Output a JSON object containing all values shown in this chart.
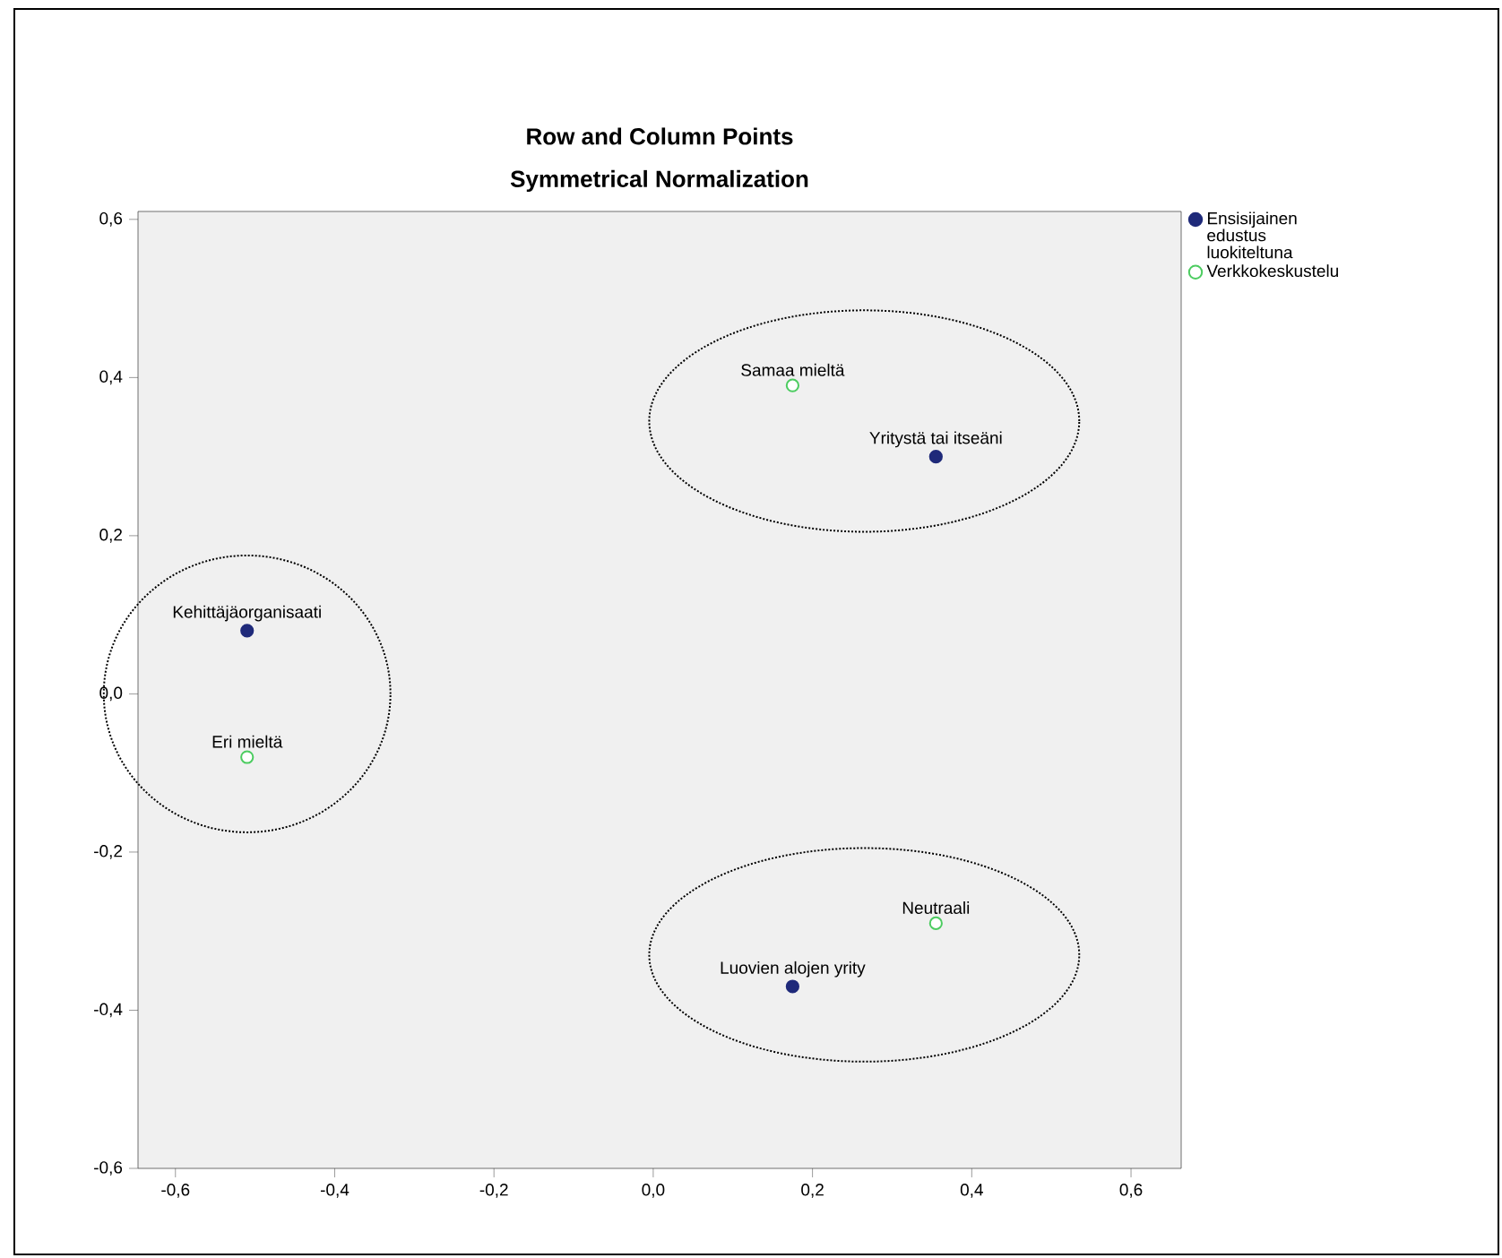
{
  "chart_data": {
    "type": "scatter",
    "title": "Row and Column Points",
    "subtitle": "Symmetrical Normalization",
    "series": [
      {
        "name": "Ensisijainen edustus luokiteltuna",
        "color": "#1f2a7a",
        "x": [
          -0.51,
          0.355,
          0.175
        ],
        "values": [
          0.08,
          0.3,
          -0.37
        ]
      },
      {
        "name": "Verkkokeskustelu",
        "color": "#4ccc60",
        "x": [
          -0.51,
          0.175,
          0.355
        ],
        "values": [
          -0.08,
          0.39,
          -0.29
        ]
      }
    ],
    "annotations": [
      {
        "text": "Kehittäjäorganisaati",
        "x": -0.51,
        "y": 0.08
      },
      {
        "text": "Yritystä tai itseäni",
        "x": 0.355,
        "y": 0.3
      },
      {
        "text": "Luovien alojen yrity",
        "x": 0.175,
        "y": -0.37
      },
      {
        "text": "Eri mieltä",
        "x": -0.51,
        "y": -0.08
      },
      {
        "text": "Samaa mieltä",
        "x": 0.175,
        "y": 0.39
      },
      {
        "text": "Neutraali",
        "x": 0.355,
        "y": -0.29
      }
    ],
    "xlim": [
      -0.647,
      0.663
    ],
    "ylim": [
      -0.6,
      0.61
    ],
    "xticks": [
      {
        "value": -0.6,
        "label": "-0,6"
      },
      {
        "value": -0.4,
        "label": "-0,4"
      },
      {
        "value": -0.2,
        "label": "-0,2"
      },
      {
        "value": 0,
        "label": "0,0"
      },
      {
        "value": 0.2,
        "label": "0,2"
      },
      {
        "value": 0.4,
        "label": "0,4"
      },
      {
        "value": 0.6,
        "label": "0,6"
      }
    ],
    "yticks": [
      {
        "value": -0.6,
        "label": "-0,6"
      },
      {
        "value": -0.4,
        "label": "-0,4"
      },
      {
        "value": -0.2,
        "label": "-0,2"
      },
      {
        "value": 0,
        "label": "0,0"
      },
      {
        "value": 0.2,
        "label": "0,2"
      },
      {
        "value": 0.4,
        "label": "0,4"
      },
      {
        "value": 0.6,
        "label": "0,6"
      }
    ],
    "grid": false,
    "legend": "top right",
    "marker": "circle"
  }
}
